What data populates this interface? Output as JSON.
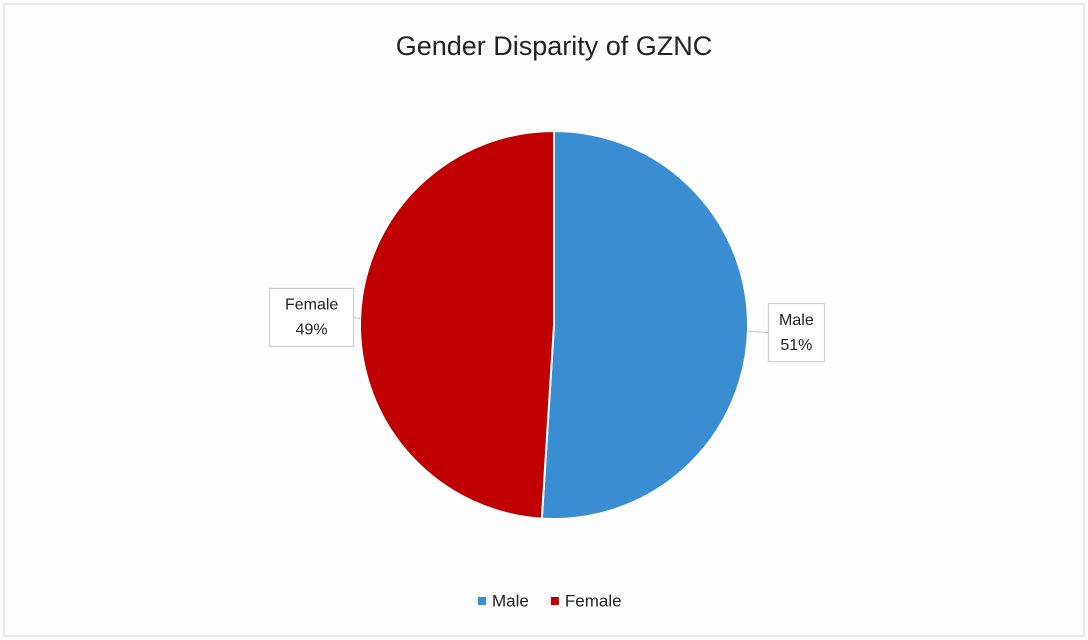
{
  "chart_data": {
    "type": "pie",
    "title": "Gender Disparity of GZNC",
    "categories": [
      "Male",
      "Female"
    ],
    "values": [
      51,
      49
    ],
    "value_labels": [
      "51%",
      "49%"
    ],
    "colors": [
      "#3a8dd0",
      "#c00000"
    ],
    "legend": "bottom"
  }
}
